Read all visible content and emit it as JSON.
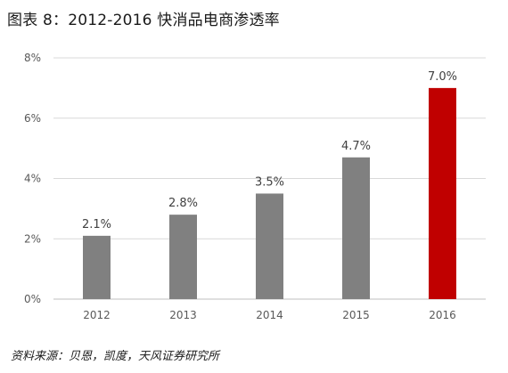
{
  "title": "图表 8：2012-2016 快消品电商渗透率",
  "source": "资料来源：贝恩，凯度，天风证券研究所",
  "colors": {
    "bar_default": "#808080",
    "bar_highlight": "#c00000",
    "grid": "#d9d9d9",
    "axis": "#bfbfbf",
    "tick_text": "#595959",
    "label_text": "#404040"
  },
  "chart_data": {
    "type": "bar",
    "title": "图表 8：2012-2016 快消品电商渗透率",
    "categories": [
      "2012",
      "2013",
      "2014",
      "2015",
      "2016"
    ],
    "values": [
      2.1,
      2.8,
      3.5,
      4.7,
      7.0
    ],
    "value_labels": [
      "2.1%",
      "2.8%",
      "3.5%",
      "4.7%",
      "7.0%"
    ],
    "highlight_index": 4,
    "ylim": [
      0,
      8
    ],
    "yticks": [
      0,
      2,
      4,
      6,
      8
    ],
    "ytick_labels": [
      "0%",
      "2%",
      "4%",
      "6%",
      "8%"
    ],
    "xlabel": "",
    "ylabel": "",
    "grid": true,
    "legend": "none"
  }
}
